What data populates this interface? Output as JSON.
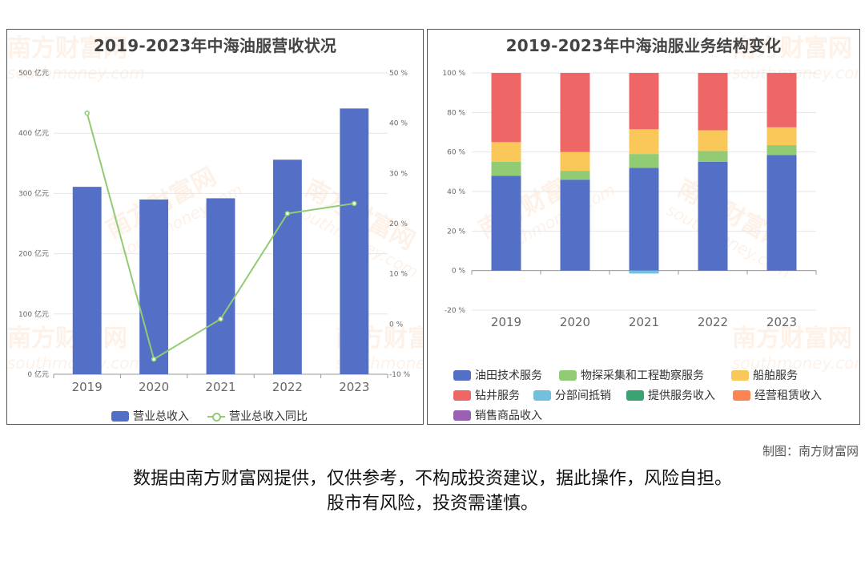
{
  "left_chart": {
    "title": "2019-2023年中海油服营收状况",
    "legend": [
      "营业总收入",
      "营业总收入同比"
    ]
  },
  "right_chart": {
    "title": "2019-2023年中海油服业务结构变化",
    "legend": [
      "油田技术服务",
      "物探采集和工程勘察服务",
      "船舶服务",
      "钻井服务",
      "分部间抵销",
      "提供服务收入",
      "经营租赁收入",
      "销售商品收入"
    ]
  },
  "watermark": {
    "brand": "南方财富网",
    "url": "southmoney.com"
  },
  "credit": "制图：南方财富网",
  "disclaimer": {
    "line1": "数据由南方财富网提供，仅供参考，不构成投资建议，据此操作，风险自担。",
    "line2": "股市有风险，投资需谨慎。"
  },
  "colors": {
    "blue": "#5470c6",
    "green": "#91cc75",
    "yellow": "#fac858",
    "red": "#ee6666",
    "cyan": "#73c0de",
    "darkgreen": "#3ba272",
    "orange": "#fc8452",
    "purple": "#9a60b4"
  },
  "chart_data": [
    {
      "type": "bar",
      "title": "2019-2023年中海油服营收状况",
      "categories": [
        "2019",
        "2020",
        "2021",
        "2022",
        "2023"
      ],
      "y_left": {
        "ticks": [
          "0 亿元",
          "100 亿元",
          "200 亿元",
          "300 亿元",
          "400 亿元",
          "500 亿元"
        ],
        "ylim": [
          0,
          500
        ]
      },
      "y_right": {
        "ticks": [
          "-10 %",
          "0 %",
          "10 %",
          "20 %",
          "30 %",
          "40 %",
          "50 %"
        ],
        "ylim": [
          -10,
          50
        ]
      },
      "series": [
        {
          "name": "营业总收入",
          "kind": "bar",
          "axis": "left",
          "color": "#5470c6",
          "values": [
            311,
            290,
            292,
            356,
            441
          ]
        },
        {
          "name": "营业总收入同比",
          "kind": "line",
          "axis": "right",
          "color": "#91cc75",
          "values": [
            42,
            -7,
            1,
            22,
            24
          ]
        }
      ],
      "grid": true,
      "legend_position": "bottom"
    },
    {
      "type": "bar",
      "stacked": true,
      "title": "2019-2023年中海油服业务结构变化",
      "categories": [
        "2019",
        "2020",
        "2021",
        "2022",
        "2023"
      ],
      "y": {
        "ticks": [
          "-20 %",
          "0 %",
          "20 %",
          "40 %",
          "60 %",
          "80 %",
          "100 %"
        ],
        "ylim": [
          -20,
          100
        ]
      },
      "series": [
        {
          "name": "油田技术服务",
          "color": "#5470c6",
          "values": [
            48,
            46,
            52,
            55,
            58.5
          ]
        },
        {
          "name": "物探采集和工程勘察服务",
          "color": "#91cc75",
          "values": [
            7,
            4.5,
            7,
            5.5,
            5
          ]
        },
        {
          "name": "船舶服务",
          "color": "#fac858",
          "values": [
            10,
            9.5,
            12.5,
            10.5,
            9
          ]
        },
        {
          "name": "钻井服务",
          "color": "#ee6666",
          "values": [
            35,
            40,
            28.5,
            29,
            27.5
          ]
        },
        {
          "name": "分部间抵销",
          "color": "#73c0de",
          "values": [
            0,
            0,
            -1.5,
            0,
            0
          ]
        },
        {
          "name": "提供服务收入",
          "color": "#3ba272",
          "values": [
            0,
            0,
            0,
            0,
            0
          ]
        },
        {
          "name": "经营租赁收入",
          "color": "#fc8452",
          "values": [
            0,
            0,
            0,
            0,
            0
          ]
        },
        {
          "name": "销售商品收入",
          "color": "#9a60b4",
          "values": [
            0,
            0,
            0,
            0,
            0
          ]
        }
      ],
      "grid": true,
      "legend_position": "bottom"
    }
  ]
}
